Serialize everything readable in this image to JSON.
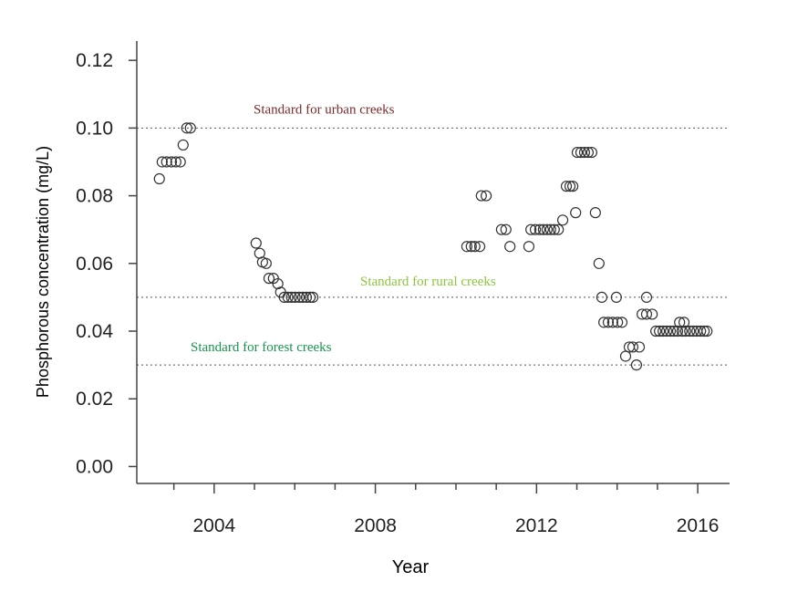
{
  "chart_data": {
    "type": "scatter",
    "title": "",
    "xlabel": "Year",
    "ylabel": "Phosphorous concentration (mg/L)",
    "xlim": [
      2002.08,
      2016.79
    ],
    "ylim": [
      -0.005,
      0.1257
    ],
    "x_ticks": [
      2004,
      2008,
      2012,
      2016
    ],
    "x_tick_labels": [
      "2004",
      "2008",
      "2012",
      "2016"
    ],
    "x_minor_ticks": [
      2003,
      2004,
      2005,
      2006,
      2007,
      2008,
      2009,
      2010,
      2011,
      2012,
      2013,
      2014,
      2015,
      2016
    ],
    "y_ticks": [
      0,
      0.02,
      0.04,
      0.06,
      0.08,
      0.1,
      0.12
    ],
    "y_tick_labels": [
      "0.00",
      "0.02",
      "0.04",
      "0.06",
      "0.08",
      "0.10",
      "0.12"
    ],
    "grid": false,
    "reference_lines": [
      {
        "label": "Standard for urban creeks",
        "value": 0.1,
        "color": "#7b2a2a"
      },
      {
        "label": "Standard for rural  creeks",
        "value": 0.05,
        "color": "#8cc63e"
      },
      {
        "label": "Standard for forest creeks",
        "value": 0.03,
        "color": "#16964a"
      }
    ],
    "points": [
      [
        2002.64,
        0.085
      ],
      [
        2002.71,
        0.09
      ],
      [
        2002.82,
        0.09
      ],
      [
        2002.94,
        0.09
      ],
      [
        2003.05,
        0.09
      ],
      [
        2003.16,
        0.09
      ],
      [
        2003.23,
        0.095
      ],
      [
        2003.32,
        0.1
      ],
      [
        2003.41,
        0.1
      ],
      [
        2005.04,
        0.066
      ],
      [
        2005.13,
        0.063
      ],
      [
        2005.2,
        0.0604
      ],
      [
        2005.29,
        0.06
      ],
      [
        2005.36,
        0.0556
      ],
      [
        2005.47,
        0.0556
      ],
      [
        2005.58,
        0.054
      ],
      [
        2005.65,
        0.0515
      ],
      [
        2005.74,
        0.05
      ],
      [
        2005.83,
        0.05
      ],
      [
        2005.92,
        0.05
      ],
      [
        2006.01,
        0.05
      ],
      [
        2006.11,
        0.05
      ],
      [
        2006.2,
        0.05
      ],
      [
        2006.29,
        0.05
      ],
      [
        2006.38,
        0.05
      ],
      [
        2006.45,
        0.05
      ],
      [
        2010.27,
        0.065
      ],
      [
        2010.38,
        0.065
      ],
      [
        2010.47,
        0.065
      ],
      [
        2010.59,
        0.065
      ],
      [
        2010.63,
        0.08
      ],
      [
        2010.75,
        0.08
      ],
      [
        2011.13,
        0.07
      ],
      [
        2011.24,
        0.07
      ],
      [
        2011.34,
        0.065
      ],
      [
        2011.81,
        0.065
      ],
      [
        2011.86,
        0.07
      ],
      [
        2011.97,
        0.07
      ],
      [
        2012.08,
        0.07
      ],
      [
        2012.17,
        0.07
      ],
      [
        2012.26,
        0.07
      ],
      [
        2012.35,
        0.07
      ],
      [
        2012.44,
        0.07
      ],
      [
        2012.54,
        0.07
      ],
      [
        2012.65,
        0.0728
      ],
      [
        2012.74,
        0.0828
      ],
      [
        2012.83,
        0.0828
      ],
      [
        2012.9,
        0.0828
      ],
      [
        2012.97,
        0.075
      ],
      [
        2013.01,
        0.0928
      ],
      [
        2013.1,
        0.0928
      ],
      [
        2013.19,
        0.0928
      ],
      [
        2013.28,
        0.0928
      ],
      [
        2013.37,
        0.0928
      ],
      [
        2013.46,
        0.075
      ],
      [
        2013.55,
        0.06
      ],
      [
        2013.62,
        0.05
      ],
      [
        2013.67,
        0.0426
      ],
      [
        2013.78,
        0.0426
      ],
      [
        2013.89,
        0.0426
      ],
      [
        2013.98,
        0.05
      ],
      [
        2014.01,
        0.0426
      ],
      [
        2014.12,
        0.0426
      ],
      [
        2014.21,
        0.0326
      ],
      [
        2014.3,
        0.0353
      ],
      [
        2014.39,
        0.0353
      ],
      [
        2014.48,
        0.03
      ],
      [
        2014.55,
        0.0353
      ],
      [
        2014.62,
        0.045
      ],
      [
        2014.73,
        0.05
      ],
      [
        2014.73,
        0.045
      ],
      [
        2014.87,
        0.045
      ],
      [
        2014.96,
        0.04
      ],
      [
        2015.05,
        0.04
      ],
      [
        2015.14,
        0.04
      ],
      [
        2015.23,
        0.04
      ],
      [
        2015.32,
        0.04
      ],
      [
        2015.41,
        0.04
      ],
      [
        2015.5,
        0.04
      ],
      [
        2015.55,
        0.0426
      ],
      [
        2015.61,
        0.04
      ],
      [
        2015.66,
        0.0426
      ],
      [
        2015.7,
        0.04
      ],
      [
        2015.8,
        0.04
      ],
      [
        2015.89,
        0.04
      ],
      [
        2015.98,
        0.04
      ],
      [
        2016.07,
        0.04
      ],
      [
        2016.16,
        0.04
      ],
      [
        2016.23,
        0.04
      ]
    ]
  }
}
